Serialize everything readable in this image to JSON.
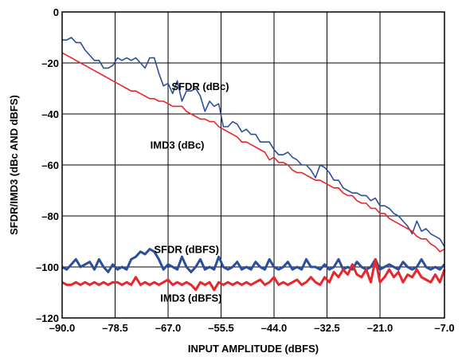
{
  "chart_data": {
    "type": "line",
    "title": "",
    "xlabel": "INPUT AMPLITUDE (dBFS)",
    "ylabel": "SFDR/IMD3 (dBc AND dBFS)",
    "xlim": [
      -90,
      -7
    ],
    "ylim": [
      -120,
      0
    ],
    "x_ticks": [
      -90.0,
      -78.5,
      -67.0,
      -55.5,
      -44.0,
      -32.5,
      -21.0,
      -7.0
    ],
    "x_tick_labels": [
      "–90.0",
      "–78.5",
      "–67.0",
      "–55.5",
      "–44.0",
      "–32.5",
      "–21.0",
      "–7.0"
    ],
    "y_ticks": [
      0,
      -20,
      -40,
      -60,
      -80,
      -100,
      -120
    ],
    "y_tick_labels": [
      "0",
      "–20",
      "–40",
      "–60",
      "–80",
      "–100",
      "–120"
    ],
    "grid": true,
    "annotations": [
      {
        "text": "SFDR (dBc)",
        "x": -60,
        "y": -29
      },
      {
        "text": "IMD3 (dBc)",
        "x": -65,
        "y": -52
      },
      {
        "text": "SFDR (dBFS)",
        "x": -63,
        "y": -93
      },
      {
        "text": "IMD3 (dBFS)",
        "x": -62,
        "y": -112
      }
    ],
    "series": [
      {
        "name": "SFDR (dBc)",
        "color": "#2b4f9e",
        "width": 1.6,
        "x": [
          -90,
          -89,
          -88,
          -87,
          -86,
          -85,
          -84,
          -83,
          -82,
          -81,
          -80,
          -79,
          -78,
          -77,
          -76,
          -75,
          -74,
          -73,
          -72,
          -71,
          -70,
          -69,
          -68,
          -67,
          -66,
          -65,
          -64,
          -63,
          -62,
          -61,
          -60,
          -59,
          -58,
          -57,
          -56,
          -55,
          -54,
          -53,
          -52,
          -51,
          -50,
          -49,
          -48,
          -47,
          -46,
          -45,
          -44,
          -43,
          -42,
          -41,
          -40,
          -39,
          -38,
          -37,
          -36,
          -35,
          -34,
          -33,
          -32,
          -31,
          -30,
          -29,
          -28,
          -27,
          -26,
          -25,
          -24,
          -23,
          -22,
          -21,
          -20,
          -19,
          -18,
          -17,
          -16,
          -15,
          -14,
          -13,
          -12,
          -11,
          -10,
          -9,
          -8,
          -7
        ],
        "y": [
          -11,
          -11,
          -10,
          -12,
          -12,
          -15,
          -17,
          -19,
          -19,
          -22,
          -22,
          -21,
          -18,
          -19,
          -18,
          -19,
          -18,
          -20,
          -22,
          -18,
          -18,
          -24,
          -29,
          -28,
          -32,
          -27,
          -35,
          -31,
          -31,
          -30,
          -33,
          -39,
          -35,
          -37,
          -36,
          -45,
          -45,
          -43,
          -44,
          -47,
          -46,
          -48,
          -48,
          -51,
          -51,
          -51,
          -54,
          -56,
          -56,
          -55,
          -57,
          -58,
          -60,
          -60,
          -62,
          -65,
          -60,
          -61,
          -63,
          -66,
          -66,
          -69,
          -70,
          -71,
          -71,
          -72,
          -72,
          -74,
          -73,
          -76,
          -76,
          -77,
          -79,
          -80,
          -82,
          -84,
          -87,
          -82,
          -86,
          -85,
          -87,
          -88,
          -89,
          -92
        ]
      },
      {
        "name": "IMD3 (dBc)",
        "color": "#e8262b",
        "width": 1.6,
        "x": [
          -90,
          -89,
          -88,
          -87,
          -86,
          -85,
          -84,
          -83,
          -82,
          -81,
          -80,
          -79,
          -78,
          -77,
          -76,
          -75,
          -74,
          -73,
          -72,
          -71,
          -70,
          -69,
          -68,
          -67,
          -66,
          -65,
          -64,
          -63,
          -62,
          -61,
          -60,
          -59,
          -58,
          -57,
          -56,
          -55,
          -54,
          -53,
          -52,
          -51,
          -50,
          -49,
          -48,
          -47,
          -46,
          -45,
          -44,
          -43,
          -42,
          -41,
          -40,
          -39,
          -38,
          -37,
          -36,
          -35,
          -34,
          -33,
          -32,
          -31,
          -30,
          -29,
          -28,
          -27,
          -26,
          -25,
          -24,
          -23,
          -22,
          -21,
          -20,
          -19,
          -18,
          -17,
          -16,
          -15,
          -14,
          -13,
          -12,
          -11,
          -10,
          -9,
          -8,
          -7
        ],
        "y": [
          -16,
          -17,
          -18,
          -19,
          -20,
          -21,
          -22,
          -23,
          -24,
          -25,
          -26,
          -27,
          -28,
          -29,
          -30,
          -31,
          -31,
          -32,
          -33,
          -34,
          -34,
          -35,
          -35,
          -36,
          -37,
          -37,
          -37,
          -39,
          -40,
          -41,
          -42,
          -42,
          -43,
          -43,
          -45,
          -46,
          -47,
          -48,
          -49,
          -51,
          -51,
          -52,
          -53,
          -54,
          -55,
          -58,
          -57,
          -59,
          -59,
          -60,
          -62,
          -63,
          -63,
          -64,
          -65,
          -66,
          -66,
          -67,
          -68,
          -69,
          -69,
          -71,
          -72,
          -72,
          -74,
          -75,
          -75,
          -77,
          -77,
          -79,
          -79,
          -81,
          -82,
          -83,
          -84,
          -85,
          -86,
          -88,
          -89,
          -89,
          -91,
          -92,
          -94,
          -93
        ]
      },
      {
        "name": "SFDR (dBFS)",
        "color": "#2b4f9e",
        "width": 3,
        "x": [
          -90,
          -89,
          -88,
          -87,
          -86,
          -85,
          -84,
          -83,
          -82,
          -81,
          -80,
          -79,
          -78,
          -77,
          -76,
          -75,
          -74,
          -73,
          -72,
          -71,
          -70,
          -69,
          -68,
          -67,
          -66,
          -65,
          -64,
          -63,
          -62,
          -61,
          -60,
          -59,
          -58,
          -57,
          -56,
          -55,
          -54,
          -53,
          -52,
          -51,
          -50,
          -49,
          -48,
          -47,
          -46,
          -45,
          -44,
          -43,
          -42,
          -41,
          -40,
          -39,
          -38,
          -37,
          -36,
          -35,
          -34,
          -33,
          -32,
          -31,
          -30,
          -29,
          -28,
          -27,
          -26,
          -25,
          -24,
          -23,
          -22,
          -21,
          -20,
          -19,
          -18,
          -17,
          -16,
          -15,
          -14,
          -13,
          -12,
          -11,
          -10,
          -9,
          -8,
          -7
        ],
        "y": [
          -100,
          -101,
          -99,
          -97,
          -100,
          -99,
          -98,
          -101,
          -97,
          -100,
          -102,
          -99,
          -101,
          -100,
          -101,
          -97,
          -96,
          -94,
          -95,
          -93,
          -94,
          -97,
          -101,
          -99,
          -100,
          -101,
          -96,
          -100,
          -102,
          -100,
          -97,
          -101,
          -100,
          -101,
          -96,
          -100,
          -101,
          -100,
          -98,
          -101,
          -100,
          -101,
          -98,
          -100,
          -101,
          -97,
          -100,
          -101,
          -100,
          -98,
          -101,
          -100,
          -101,
          -97,
          -100,
          -100,
          -101,
          -99,
          -101,
          -100,
          -97,
          -101,
          -100,
          -101,
          -98,
          -100,
          -101,
          -100,
          -97,
          -101,
          -100,
          -99,
          -100,
          -101,
          -98,
          -100,
          -101,
          -100,
          -97,
          -100,
          -101,
          -100,
          -101,
          -99
        ]
      },
      {
        "name": "IMD3 (dBFS)",
        "color": "#e8262b",
        "width": 3,
        "x": [
          -90,
          -89,
          -88,
          -87,
          -86,
          -85,
          -84,
          -83,
          -82,
          -81,
          -80,
          -79,
          -78,
          -77,
          -76,
          -75,
          -74,
          -73,
          -72,
          -71,
          -70,
          -69,
          -68,
          -67,
          -66,
          -65,
          -64,
          -63,
          -62,
          -61,
          -60,
          -59,
          -58,
          -57,
          -56,
          -55,
          -54,
          -53,
          -52,
          -51,
          -50,
          -49,
          -48,
          -47,
          -46,
          -45,
          -44,
          -43,
          -42,
          -41,
          -40,
          -39,
          -38,
          -37,
          -36,
          -35,
          -34,
          -33,
          -32,
          -31,
          -30,
          -29,
          -28,
          -27,
          -26,
          -25,
          -24,
          -23,
          -22,
          -21,
          -20,
          -19,
          -18,
          -17,
          -16,
          -15,
          -14,
          -13,
          -12,
          -11,
          -10,
          -9,
          -8,
          -7
        ],
        "y": [
          -106,
          -107,
          -107,
          -106,
          -107,
          -106,
          -107,
          -106,
          -107,
          -106,
          -107,
          -106,
          -106,
          -107,
          -106,
          -107,
          -104,
          -107,
          -106,
          -107,
          -106,
          -107,
          -106,
          -105,
          -107,
          -106,
          -107,
          -106,
          -107,
          -109,
          -106,
          -107,
          -106,
          -109,
          -106,
          -107,
          -106,
          -107,
          -106,
          -107,
          -106,
          -107,
          -106,
          -105,
          -107,
          -106,
          -104,
          -107,
          -106,
          -107,
          -106,
          -105,
          -107,
          -106,
          -104,
          -106,
          -107,
          -104,
          -106,
          -102,
          -104,
          -101,
          -103,
          -99,
          -103,
          -104,
          -101,
          -106,
          -97,
          -106,
          -104,
          -101,
          -104,
          -102,
          -106,
          -103,
          -104,
          -101,
          -104,
          -105,
          -106,
          -103,
          -106,
          -101
        ]
      }
    ]
  }
}
